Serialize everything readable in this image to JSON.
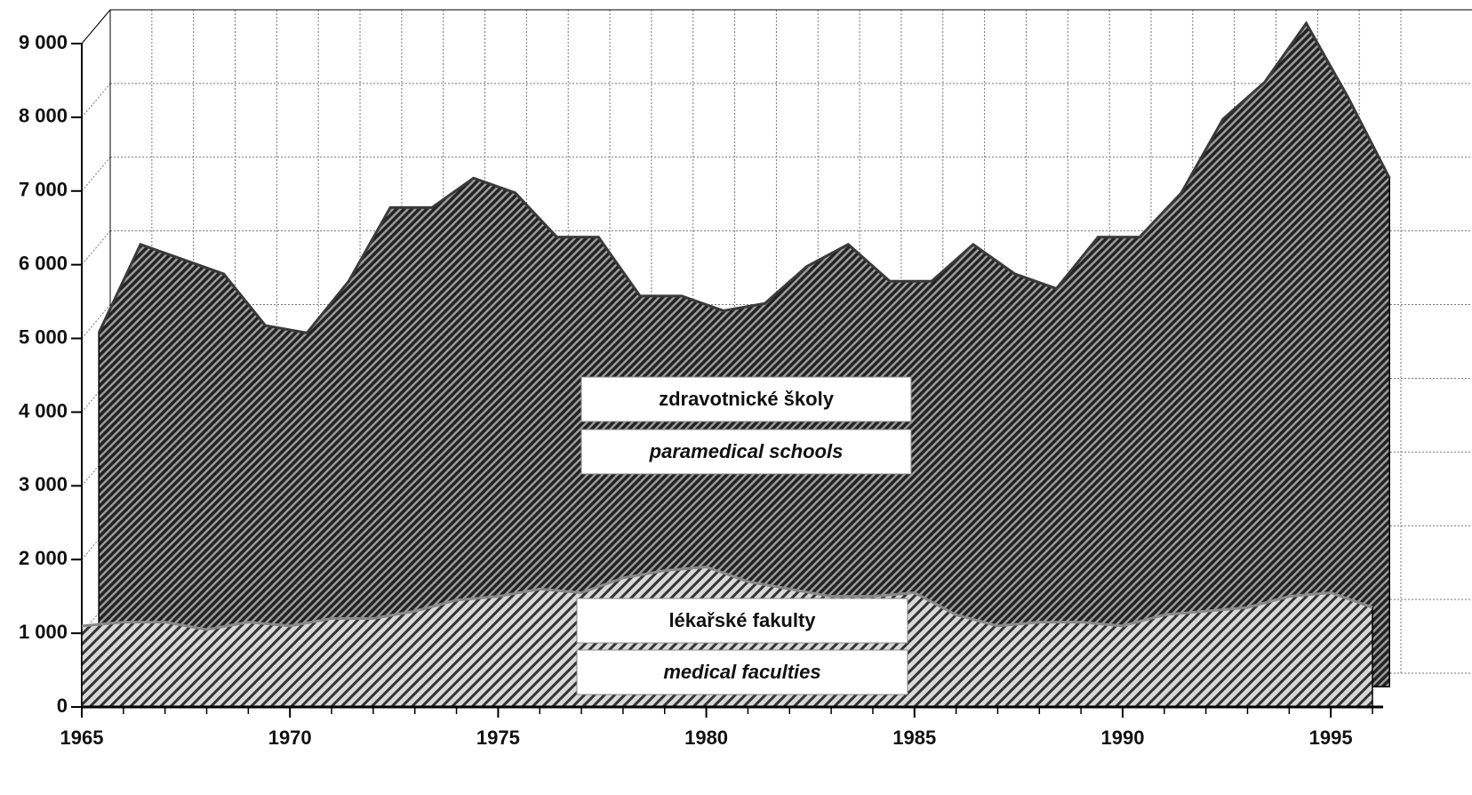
{
  "chart_data": {
    "type": "area",
    "x": [
      1965,
      1966,
      1967,
      1968,
      1969,
      1970,
      1971,
      1972,
      1973,
      1974,
      1975,
      1976,
      1977,
      1978,
      1979,
      1980,
      1981,
      1982,
      1983,
      1984,
      1985,
      1986,
      1987,
      1988,
      1989,
      1990,
      1991,
      1992,
      1993,
      1994,
      1995,
      1996
    ],
    "xlim": [
      1965,
      1996
    ],
    "xticks": [
      1965,
      1970,
      1975,
      1980,
      1985,
      1990,
      1995
    ],
    "ylim": [
      0,
      9000
    ],
    "yticks": [
      0,
      {
        "value": 1000,
        "label": "1 000"
      },
      {
        "value": 2000,
        "label": "2 000"
      },
      {
        "value": 3000,
        "label": "3 000"
      },
      {
        "value": 4000,
        "label": "4 000"
      },
      {
        "value": 5000,
        "label": "5 000"
      },
      {
        "value": 6000,
        "label": "6 000"
      },
      {
        "value": 7000,
        "label": "7 000"
      },
      {
        "value": 8000,
        "label": "8 000"
      },
      {
        "value": 9000,
        "label": "9 000"
      }
    ],
    "grid": true,
    "series": [
      {
        "name": "zdravotnické školy",
        "name_en": "paramedical schools",
        "color": "#3a3a3a",
        "values": [
          4800,
          6000,
          5800,
          5600,
          4900,
          4800,
          5500,
          6500,
          6500,
          6900,
          6700,
          6100,
          6100,
          5300,
          5300,
          5100,
          5200,
          5700,
          6000,
          5500,
          5500,
          6000,
          5600,
          5400,
          6100,
          6100,
          6700,
          7700,
          8200,
          9000,
          8000,
          6900
        ]
      },
      {
        "name": "lékařské fakulty",
        "name_en": "medical faculties",
        "color": "#8a8a8a",
        "values": [
          1100,
          1150,
          1150,
          1050,
          1150,
          1100,
          1200,
          1200,
          1300,
          1450,
          1500,
          1600,
          1550,
          1750,
          1850,
          1900,
          1700,
          1600,
          1500,
          1500,
          1550,
          1250,
          1100,
          1150,
          1150,
          1100,
          1250,
          1300,
          1350,
          1500,
          1550,
          1350
        ]
      }
    ]
  }
}
